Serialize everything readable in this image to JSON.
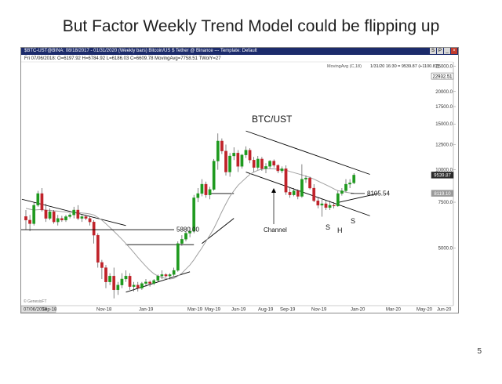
{
  "slide": {
    "title": "But Factor Weekly Trend Model could be flipping up",
    "page_number": "5"
  },
  "window": {
    "title": "$BTC-UST@BINA: 08/18/2017 - 01/31/2020 (Weekly bars)   Bitcoin/US $ Tether @ Binance   ---   Template: Default",
    "buttons": [
      "S",
      "P",
      "_",
      "×"
    ]
  },
  "chart_data": {
    "type": "candlestick",
    "ohlc_header": "Fri  07/06/2018:  O=6197.92  H=6784.92  L=6186.03  C=6609.78  MovingAvg=7758.51  TWolY=27",
    "indicator_label": "MovingAvg (C,18)",
    "cursor_readout": "1/31/20 16:30 = 9539.87 (+1100.87)",
    "y_scale": "log",
    "ylim": [
      3000,
      26000
    ],
    "y_ticks": [
      "25000.0",
      "20000.0",
      "17500.0",
      "15000.0",
      "12500.0",
      "10000.0",
      "7500.0",
      "5000.0"
    ],
    "y_tick_values": [
      25000,
      20000,
      17500,
      15000,
      12500,
      10000,
      7500,
      5000
    ],
    "x_ticks": [
      "07/06/2018",
      "Sep-18",
      "Nov-18",
      "Jan-19",
      "Mar-19",
      "May-19",
      "Jun-19",
      "Aug-19",
      "Sep-19",
      "Nov-19",
      "Jan-20",
      "Mar-20",
      "May-20",
      "Jun-20"
    ],
    "price_flags": [
      {
        "label": "22932.51",
        "value": 22932.51,
        "style": "outline"
      },
      {
        "label": "9539.87",
        "value": 9539.87,
        "style": "dark"
      },
      {
        "label": "8119.10",
        "value": 8119.1,
        "style": "gray"
      }
    ],
    "annotations": {
      "symbol": "BTC/UST",
      "channel": "Channel",
      "level_5880": "5880.00",
      "level_8105": "8105.54",
      "s1": "S",
      "h": "H",
      "s2": "S"
    },
    "level_values": [
      5880,
      8105.54
    ],
    "watermark": "© GenesisFT",
    "up_color": "#1f9a1f",
    "down_color": "#c0232a",
    "ma_color": "#a0a0a0",
    "candles": [
      [
        6610,
        7000,
        5900,
        6400
      ],
      [
        6400,
        6700,
        5800,
        6200
      ],
      [
        6200,
        7500,
        6100,
        7300
      ],
      [
        7300,
        8300,
        7200,
        8100
      ],
      [
        8100,
        8500,
        6900,
        7000
      ],
      [
        7000,
        7400,
        6300,
        6500
      ],
      [
        6500,
        7100,
        6400,
        6900
      ],
      [
        6900,
        7000,
        6200,
        6300
      ],
      [
        6300,
        6700,
        6100,
        6500
      ],
      [
        6500,
        6650,
        6300,
        6400
      ],
      [
        6400,
        6700,
        6300,
        6600
      ],
      [
        6600,
        6800,
        6500,
        6700
      ],
      [
        6700,
        7200,
        6500,
        7000
      ],
      [
        7000,
        7300,
        6400,
        6500
      ],
      [
        6500,
        6700,
        6300,
        6600
      ],
      [
        6600,
        6700,
        6400,
        6500
      ],
      [
        6500,
        6600,
        6100,
        6300
      ],
      [
        6300,
        6400,
        5200,
        5600
      ],
      [
        5600,
        5700,
        4200,
        4400
      ],
      [
        4400,
        4500,
        3800,
        4200
      ],
      [
        4200,
        4300,
        3500,
        3700
      ],
      [
        3700,
        4000,
        3600,
        3900
      ],
      [
        3900,
        4200,
        3200,
        3450
      ],
      [
        3450,
        3700,
        3300,
        3600
      ],
      [
        3600,
        4000,
        3500,
        3800
      ],
      [
        3800,
        4100,
        3700,
        3900
      ],
      [
        3900,
        4000,
        3450,
        3550
      ],
      [
        3550,
        3700,
        3400,
        3600
      ],
      [
        3600,
        3700,
        3400,
        3500
      ],
      [
        3500,
        3700,
        3450,
        3650
      ],
      [
        3650,
        3800,
        3550,
        3700
      ],
      [
        3700,
        3750,
        3550,
        3650
      ],
      [
        3650,
        3800,
        3600,
        3750
      ],
      [
        3750,
        3950,
        3700,
        3900
      ],
      [
        3900,
        4100,
        3800,
        3950
      ],
      [
        3950,
        4000,
        3850,
        3900
      ],
      [
        3900,
        4000,
        3800,
        3950
      ],
      [
        3950,
        4200,
        3900,
        4100
      ],
      [
        4100,
        5300,
        4050,
        5200
      ],
      [
        5200,
        5600,
        5100,
        5400
      ],
      [
        5400,
        5800,
        5300,
        5700
      ],
      [
        5700,
        6000,
        5500,
        5800
      ],
      [
        5800,
        8000,
        5700,
        7800
      ],
      [
        7800,
        8500,
        7500,
        8100
      ],
      [
        8100,
        9200,
        7900,
        8800
      ],
      [
        8800,
        9000,
        7800,
        8000
      ],
      [
        8000,
        8600,
        7700,
        8400
      ],
      [
        8400,
        11000,
        8300,
        10800
      ],
      [
        10800,
        13800,
        10000,
        12900
      ],
      [
        12900,
        13200,
        11500,
        11800
      ],
      [
        11800,
        12500,
        9500,
        9800
      ],
      [
        9800,
        11600,
        9400,
        11300
      ],
      [
        11300,
        12200,
        10900,
        11600
      ],
      [
        11600,
        11900,
        9800,
        10300
      ],
      [
        10300,
        11500,
        10100,
        11400
      ],
      [
        11400,
        12300,
        11100,
        11900
      ],
      [
        11900,
        12100,
        10600,
        10900
      ],
      [
        10900,
        11200,
        9800,
        10200
      ],
      [
        10200,
        11300,
        10000,
        11000
      ],
      [
        11000,
        11200,
        9900,
        10100
      ],
      [
        10100,
        10600,
        9700,
        10300
      ],
      [
        10300,
        10900,
        10100,
        10800
      ],
      [
        10800,
        10950,
        10200,
        10400
      ],
      [
        10400,
        10500,
        9700,
        9900
      ],
      [
        9900,
        10300,
        9700,
        10100
      ],
      [
        10100,
        10400,
        8000,
        8200
      ],
      [
        8200,
        8500,
        7800,
        8000
      ],
      [
        8000,
        8500,
        7900,
        8300
      ],
      [
        8300,
        8400,
        7700,
        7900
      ],
      [
        7900,
        10500,
        7800,
        9200
      ],
      [
        9200,
        9500,
        8900,
        9300
      ],
      [
        9300,
        9400,
        8400,
        8500
      ],
      [
        8500,
        8800,
        7500,
        7600
      ],
      [
        7600,
        7800,
        7100,
        7300
      ],
      [
        7300,
        7700,
        6600,
        7400
      ],
      [
        7400,
        7600,
        7000,
        7150
      ],
      [
        7150,
        7600,
        7000,
        7300
      ],
      [
        7300,
        7500,
        7100,
        7250
      ],
      [
        7250,
        8300,
        7200,
        8100
      ],
      [
        8100,
        8500,
        7950,
        8300
      ],
      [
        8300,
        9200,
        8200,
        8800
      ],
      [
        8800,
        9200,
        8500,
        8900
      ],
      [
        8900,
        9700,
        8800,
        9540
      ]
    ],
    "moving_average": [
      7100,
      7050,
      7000,
      7020,
      7030,
      6990,
      6980,
      6950,
      6930,
      6900,
      6880,
      6870,
      6860,
      6840,
      6820,
      6800,
      6760,
      6700,
      6550,
      6400,
      6200,
      6000,
      5800,
      5600,
      5400,
      5200,
      5000,
      4800,
      4600,
      4420,
      4250,
      4100,
      3980,
      3900,
      3850,
      3820,
      3800,
      3820,
      3900,
      4000,
      4150,
      4300,
      4500,
      4750,
      5000,
      5300,
      5600,
      5950,
      6400,
      6900,
      7400,
      7900,
      8300,
      8700,
      9000,
      9300,
      9600,
      9800,
      9950,
      10050,
      10100,
      10100,
      10080,
      10050,
      10000,
      9950,
      9850,
      9750,
      9650,
      9550,
      9450,
      9350,
      9200,
      9050,
      8900,
      8750,
      8600,
      8450,
      8300,
      8250,
      8200,
      8150,
      8120
    ]
  }
}
